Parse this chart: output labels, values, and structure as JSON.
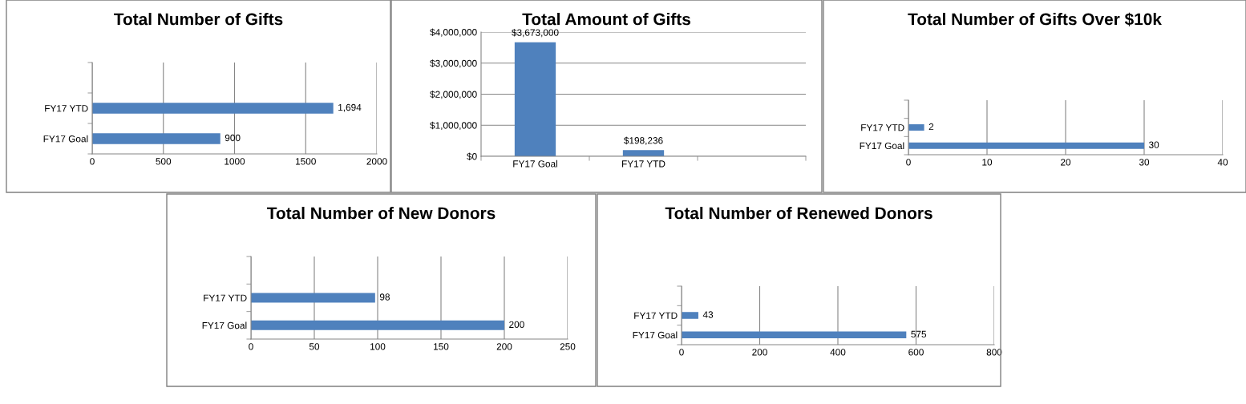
{
  "chart_data": [
    {
      "type": "bar",
      "orientation": "horizontal",
      "title": "Total Number of Gifts",
      "categories": [
        null,
        "FY17 YTD",
        "FY17 Goal"
      ],
      "values": [
        null,
        1694,
        900
      ],
      "value_labels": [
        null,
        "1,694",
        "900"
      ],
      "color": "#4f81bd",
      "xlim": [
        0,
        2000
      ],
      "xticks": [
        0,
        500,
        1000,
        1500,
        2000
      ],
      "grid": "x",
      "legend": false
    },
    {
      "type": "bar",
      "title": "Total Amount of Gifts",
      "categories": [
        "FY17 Goal",
        "FY17 YTD",
        null
      ],
      "values": [
        3673000,
        198236,
        null
      ],
      "value_labels": [
        "$3,673,000",
        "$198,236",
        null
      ],
      "color": "#4f81bd",
      "ylim": [
        0,
        4000000
      ],
      "yticks": [
        {
          "value": 0,
          "label": "$0"
        },
        {
          "value": 1000000,
          "label": "$1,000,000"
        },
        {
          "value": 2000000,
          "label": "$2,000,000"
        },
        {
          "value": 3000000,
          "label": "$3,000,000"
        },
        {
          "value": 4000000,
          "label": "$4,000,000"
        }
      ],
      "grid": "y",
      "legend": false
    },
    {
      "type": "bar",
      "orientation": "horizontal",
      "title": "Total Number of Gifts Over $10k",
      "categories": [
        null,
        "FY17 YTD",
        "FY17 Goal"
      ],
      "values": [
        null,
        2,
        30
      ],
      "value_labels": [
        null,
        "2",
        "30"
      ],
      "color": "#4f81bd",
      "xlim": [
        0,
        40
      ],
      "xticks": [
        0,
        10,
        20,
        30,
        40
      ],
      "grid": "x",
      "legend": false
    },
    {
      "type": "bar",
      "orientation": "horizontal",
      "title": "Total Number of New Donors",
      "categories": [
        null,
        "FY17 YTD",
        "FY17 Goal"
      ],
      "values": [
        null,
        98,
        200
      ],
      "value_labels": [
        null,
        "98",
        "200"
      ],
      "color": "#4f81bd",
      "xlim": [
        0,
        250
      ],
      "xticks": [
        0,
        50,
        100,
        150,
        200,
        250
      ],
      "grid": "x",
      "legend": false
    },
    {
      "type": "bar",
      "orientation": "horizontal",
      "title": "Total Number of Renewed Donors",
      "categories": [
        null,
        "FY17 YTD",
        "FY17 Goal"
      ],
      "values": [
        null,
        43,
        575
      ],
      "value_labels": [
        null,
        "43",
        "575"
      ],
      "color": "#4f81bd",
      "xlim": [
        0,
        800
      ],
      "xticks": [
        0,
        200,
        400,
        600,
        800
      ],
      "grid": "x",
      "legend": false
    }
  ]
}
